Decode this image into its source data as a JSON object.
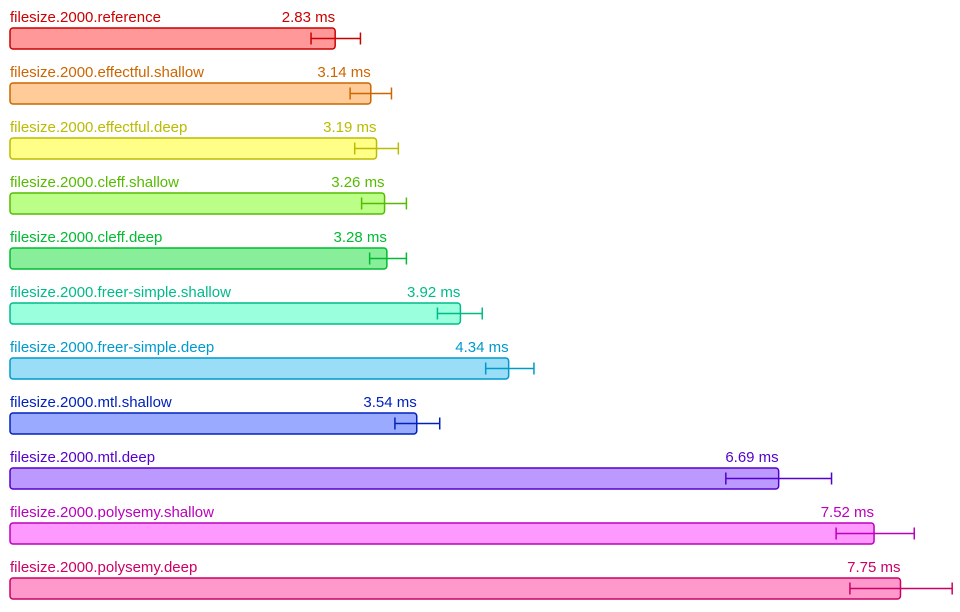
{
  "chart_data": {
    "type": "bar",
    "orientation": "horizontal",
    "unit": "ms",
    "grid": false,
    "legend": "none",
    "series": [
      {
        "label": "filesize.2000.reference",
        "value": 2.83,
        "value_text": "2.83 ms",
        "err_low": 2.62,
        "err_high": 3.05,
        "color": "#cc0000",
        "fill": "#ff9999"
      },
      {
        "label": "filesize.2000.effectful.shallow",
        "value": 3.14,
        "value_text": "3.14 ms",
        "err_low": 2.96,
        "err_high": 3.32,
        "color": "#cc6600",
        "fill": "#ffcc99"
      },
      {
        "label": "filesize.2000.effectful.deep",
        "value": 3.19,
        "value_text": "3.19 ms",
        "err_low": 3.0,
        "err_high": 3.38,
        "color": "#bbbb00",
        "fill": "#ffff88"
      },
      {
        "label": "filesize.2000.cleff.shallow",
        "value": 3.26,
        "value_text": "3.26 ms",
        "err_low": 3.06,
        "err_high": 3.45,
        "color": "#55bb00",
        "fill": "#bbff88"
      },
      {
        "label": "filesize.2000.cleff.deep",
        "value": 3.28,
        "value_text": "3.28 ms",
        "err_low": 3.13,
        "err_high": 3.45,
        "color": "#00bb33",
        "fill": "#88ee99"
      },
      {
        "label": "filesize.2000.freer-simple.shallow",
        "value": 3.92,
        "value_text": "3.92 ms",
        "err_low": 3.72,
        "err_high": 4.11,
        "color": "#00bb88",
        "fill": "#99ffdd"
      },
      {
        "label": "filesize.2000.freer-simple.deep",
        "value": 4.34,
        "value_text": "4.34 ms",
        "err_low": 4.14,
        "err_high": 4.56,
        "color": "#0099cc",
        "fill": "#99ddf7"
      },
      {
        "label": "filesize.2000.mtl.shallow",
        "value": 3.54,
        "value_text": "3.54 ms",
        "err_low": 3.35,
        "err_high": 3.74,
        "color": "#0022bb",
        "fill": "#99aaff"
      },
      {
        "label": "filesize.2000.mtl.deep",
        "value": 6.69,
        "value_text": "6.69 ms",
        "err_low": 6.23,
        "err_high": 7.15,
        "color": "#5500cc",
        "fill": "#bb99ff"
      },
      {
        "label": "filesize.2000.polysemy.shallow",
        "value": 7.52,
        "value_text": "7.52 ms",
        "err_low": 7.19,
        "err_high": 7.87,
        "color": "#bb00bb",
        "fill": "#ff99ff"
      },
      {
        "label": "filesize.2000.polysemy.deep",
        "value": 7.75,
        "value_text": "7.75 ms",
        "err_low": 7.31,
        "err_high": 8.2,
        "color": "#cc0066",
        "fill": "#ff99cc"
      }
    ]
  }
}
